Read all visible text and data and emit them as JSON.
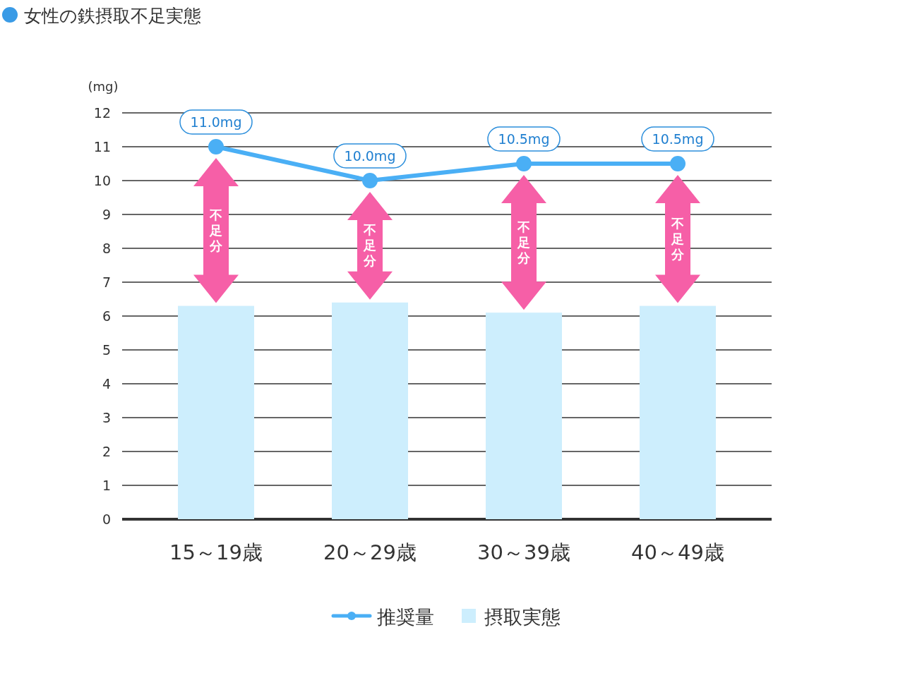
{
  "chart_data": {
    "type": "bar",
    "title": "女性の鉄摂取不足実態",
    "ylabel": "(mg)",
    "categories": [
      "15～19歳",
      "20～29歳",
      "30～39歳",
      "40～49歳"
    ],
    "series": [
      {
        "name": "推奨量",
        "type": "line",
        "color": "#4aaff5",
        "values": [
          11,
          10,
          10.5,
          10.5
        ],
        "value_labels": [
          "11.0mg",
          "10.0mg",
          "10.5mg",
          "10.5mg"
        ]
      },
      {
        "name": "摂取実態",
        "color": "#cdeefd",
        "values": [
          6.3,
          6.4,
          6.1,
          6.3
        ]
      }
    ],
    "ylim": [
      0,
      12
    ],
    "yticks": [
      0,
      1,
      2,
      3,
      4,
      5,
      6,
      7,
      8,
      9,
      10,
      11,
      12
    ],
    "grid": "y",
    "marker": "circle",
    "legend": "bottom",
    "annotations": [
      "不足分",
      "不足分",
      "不足分",
      "不足分"
    ]
  }
}
